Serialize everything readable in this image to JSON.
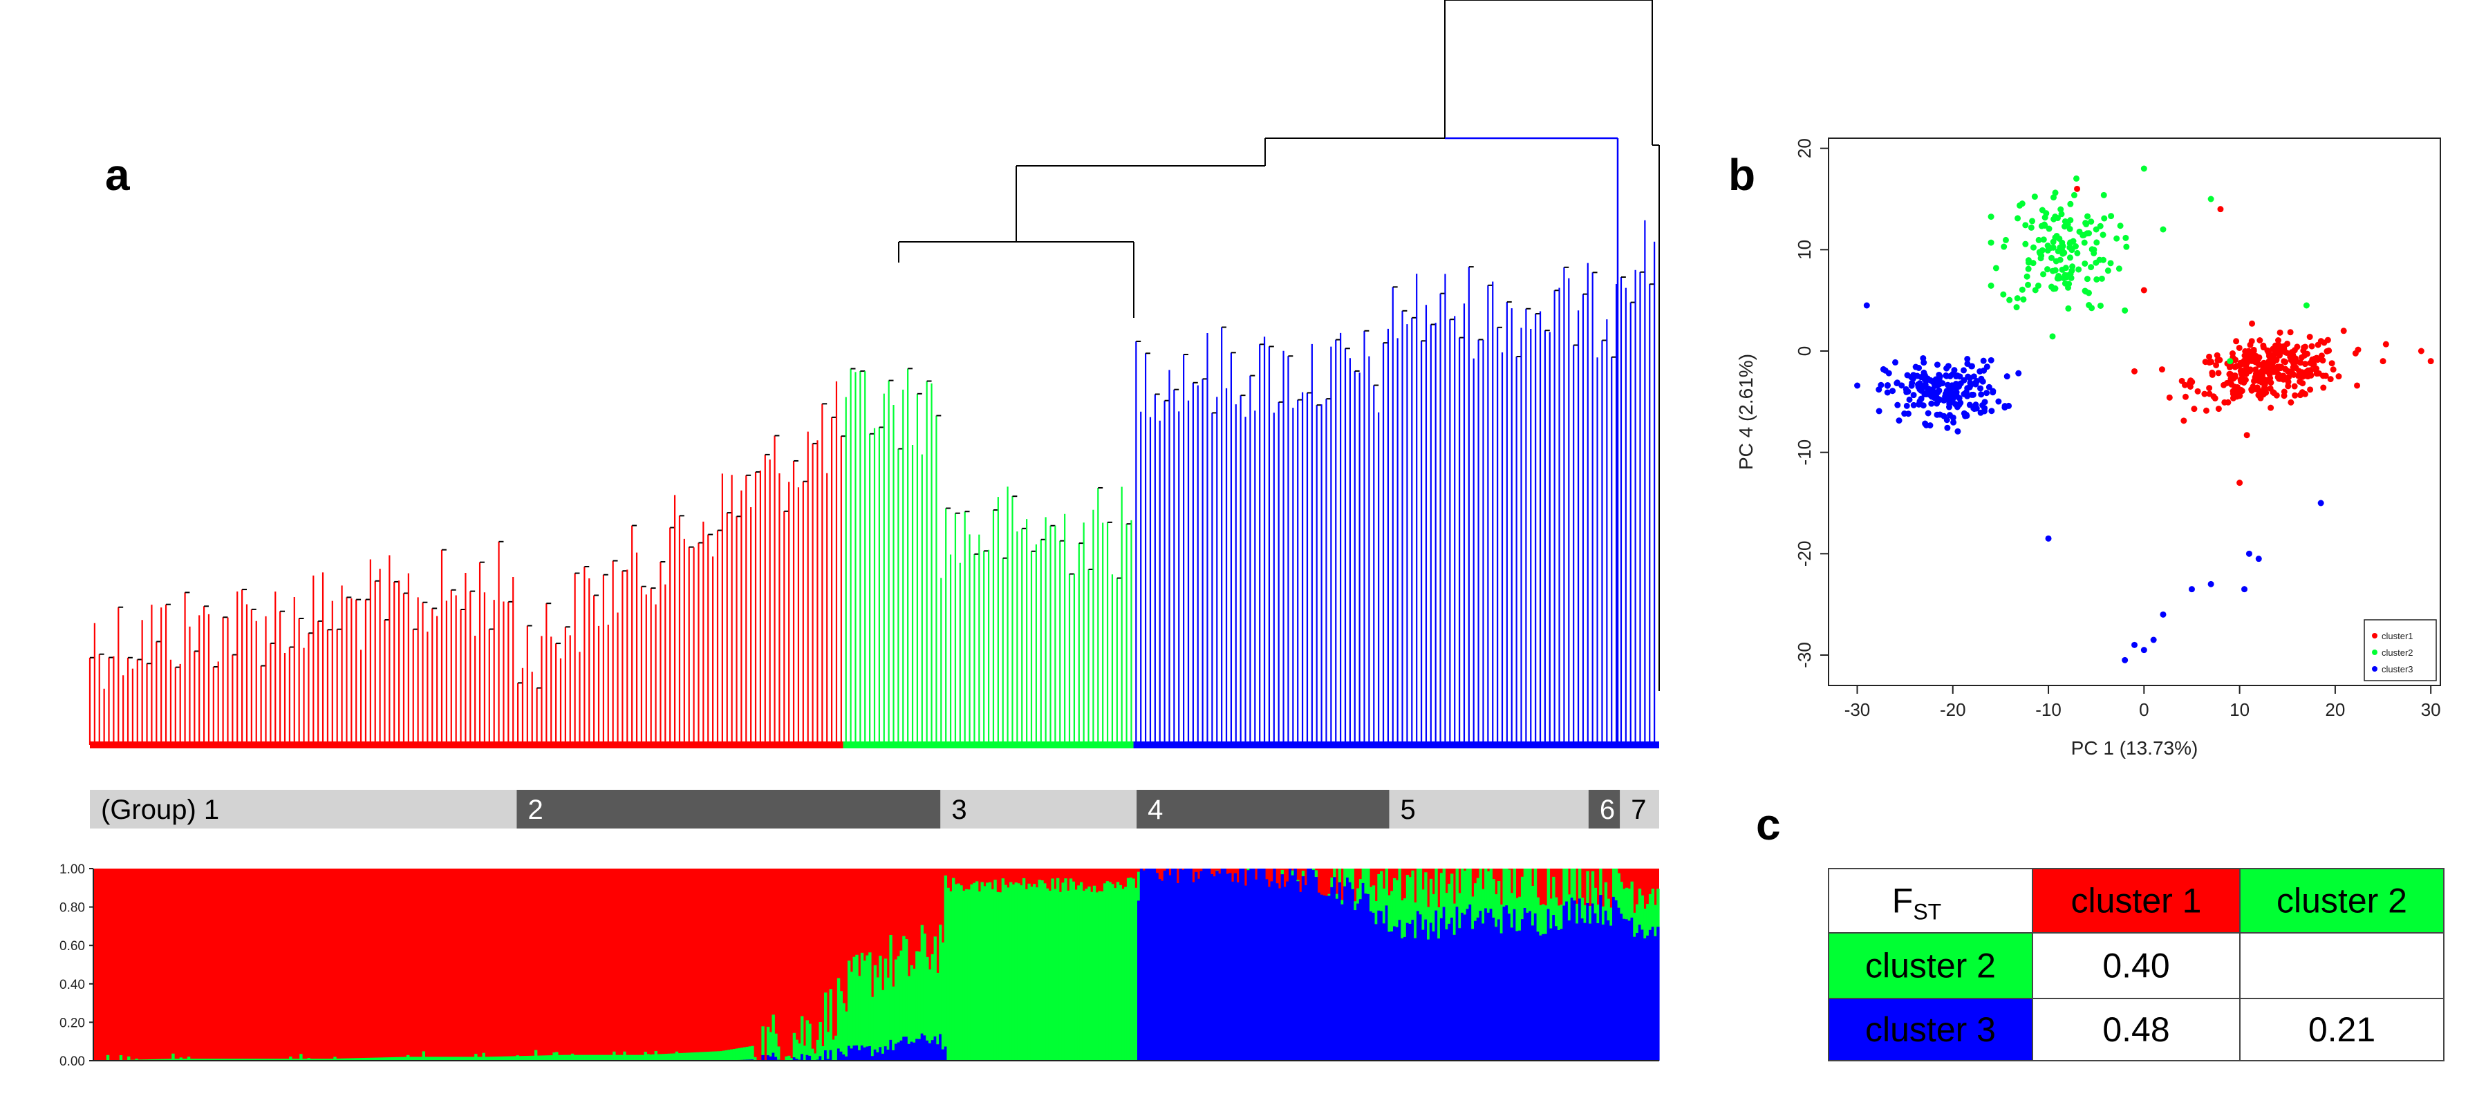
{
  "panels": {
    "a": "a",
    "b": "b",
    "c": "c"
  },
  "colors": {
    "cluster1": "#ff0000",
    "cluster2": "#00ff33",
    "cluster3": "#0000ff",
    "tree": "#000000",
    "group_light": "#d3d3d3",
    "group_dark": "#595959"
  },
  "chart_data": [
    {
      "id": "dendrogram",
      "type": "dendrogram",
      "description_segments": [
        {
          "cluster": "cluster1",
          "start": 0.0,
          "end": 0.48
        },
        {
          "cluster": "cluster2",
          "start": 0.48,
          "end": 0.665
        },
        {
          "cluster": "cluster3",
          "start": 0.665,
          "end": 1.0
        }
      ]
    },
    {
      "id": "groups",
      "type": "bar",
      "groups": [
        {
          "label": "(Group) 1",
          "start": 0.0,
          "end": 0.272,
          "shade": "light"
        },
        {
          "label": "2",
          "start": 0.272,
          "end": 0.542,
          "shade": "dark"
        },
        {
          "label": "3",
          "start": 0.542,
          "end": 0.667,
          "shade": "light"
        },
        {
          "label": "4",
          "start": 0.667,
          "end": 0.828,
          "shade": "dark"
        },
        {
          "label": "5",
          "start": 0.828,
          "end": 0.955,
          "shade": "light"
        },
        {
          "label": "6",
          "start": 0.955,
          "end": 0.975,
          "shade": "dark"
        },
        {
          "label": "7",
          "start": 0.975,
          "end": 1.0,
          "shade": "light"
        }
      ]
    },
    {
      "id": "admixture",
      "type": "area",
      "ylim": [
        0,
        1
      ],
      "yticks": [
        "1.00",
        "0.80",
        "0.60",
        "0.40",
        "0.20",
        "0.00"
      ],
      "series_order": [
        "cluster1",
        "cluster2",
        "cluster3"
      ],
      "x": [
        0,
        0.05,
        0.1,
        0.15,
        0.2,
        0.25,
        0.3,
        0.35,
        0.4,
        0.43,
        0.46,
        0.48,
        0.5,
        0.52,
        0.54,
        0.545,
        0.6,
        0.64,
        0.665,
        0.667,
        0.7,
        0.74,
        0.78,
        0.81,
        0.83,
        0.86,
        0.89,
        0.92,
        0.95,
        0.97,
        0.99,
        1.0
      ],
      "cluster3_share": [
        0.0,
        0.0,
        0.0,
        0.0,
        0.0,
        0.0,
        0.0,
        0.0,
        0.0,
        0.01,
        0.02,
        0.04,
        0.06,
        0.1,
        0.12,
        0.0,
        0.0,
        0.0,
        0.0,
        1.0,
        1.0,
        0.98,
        0.95,
        0.85,
        0.7,
        0.72,
        0.75,
        0.72,
        0.8,
        0.78,
        0.7,
        0.7
      ],
      "cluster2_share": [
        0.0,
        0.01,
        0.01,
        0.01,
        0.02,
        0.02,
        0.03,
        0.03,
        0.05,
        0.08,
        0.15,
        0.3,
        0.45,
        0.4,
        0.5,
        0.9,
        0.9,
        0.9,
        0.9,
        0.0,
        0.0,
        0.01,
        0.03,
        0.12,
        0.25,
        0.22,
        0.2,
        0.22,
        0.15,
        0.15,
        0.2,
        0.2
      ]
    },
    {
      "id": "pca",
      "type": "scatter",
      "xlabel": "PC 1 (13.73%)",
      "ylabel": "PC 4 (2.61%)",
      "xlim": [
        -33,
        31
      ],
      "ylim": [
        -33,
        21
      ],
      "xticks": [
        -30,
        -20,
        -10,
        0,
        10,
        20,
        30
      ],
      "yticks": [
        20,
        10,
        0,
        -10,
        -20,
        -30
      ],
      "legend": [
        "cluster1",
        "cluster2",
        "cluster3"
      ],
      "legend_position": "bottom-right",
      "series": [
        {
          "name": "cluster1",
          "color": "#ff0000",
          "center": [
            13,
            -2
          ],
          "spread": [
            6.5,
            2.5
          ],
          "n": 320
        },
        {
          "name": "cluster2",
          "color": "#00ff33",
          "center": [
            -9,
            10
          ],
          "spread": [
            5,
            5
          ],
          "n": 150
        },
        {
          "name": "cluster3",
          "color": "#0000ff",
          "center": [
            -21,
            -4
          ],
          "spread": [
            5,
            2.5
          ],
          "n": 210
        }
      ],
      "outliers_cluster3": [
        [
          -1,
          -29
        ],
        [
          0,
          -29.5
        ],
        [
          1,
          -28.5
        ],
        [
          -2,
          -30.5
        ],
        [
          5,
          -23.5
        ],
        [
          7,
          -23
        ],
        [
          11,
          -20
        ],
        [
          12,
          -20.5
        ],
        [
          18.5,
          -15
        ],
        [
          -10,
          -18.5
        ],
        [
          2,
          -26
        ],
        [
          -29,
          4.5
        ],
        [
          10.5,
          -23.5
        ]
      ],
      "outliers_cluster1": [
        [
          10,
          -13
        ],
        [
          0,
          6
        ],
        [
          -7,
          16
        ],
        [
          8,
          14
        ],
        [
          29,
          0
        ],
        [
          30,
          -1
        ],
        [
          25,
          -1
        ],
        [
          -1,
          -2
        ]
      ],
      "outliers_cluster2": [
        [
          0,
          18
        ],
        [
          2,
          12
        ],
        [
          7,
          15
        ],
        [
          9,
          -1
        ],
        [
          -5,
          12
        ],
        [
          -2,
          4
        ],
        [
          17,
          4.5
        ]
      ]
    }
  ],
  "fst_table": {
    "header": [
      "F_ST",
      "cluster 1",
      "cluster 2"
    ],
    "corner": {
      "main": "F",
      "sub": "ST"
    },
    "rows": [
      {
        "label": "cluster 2",
        "values": [
          "0.40",
          ""
        ]
      },
      {
        "label": "cluster 3",
        "values": [
          "0.48",
          "0.21"
        ]
      }
    ]
  }
}
